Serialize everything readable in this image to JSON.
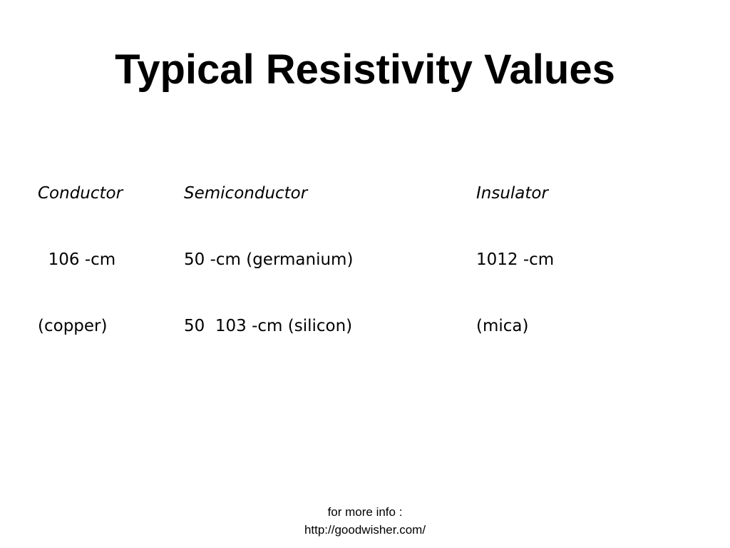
{
  "title": "Typical Resistivity Values",
  "columns": [
    {
      "heading": "Conductor",
      "lines": [
        "  106 -cm",
        "(copper)"
      ]
    },
    {
      "heading": "Semiconductor",
      "lines": [
        "50 -cm (germanium)",
        "50  103 -cm (silicon)"
      ]
    },
    {
      "heading": "Insulator",
      "lines": [
        "1012 -cm",
        "(mica)"
      ]
    }
  ],
  "footer": {
    "line1": "for more info :",
    "line2": "http://goodwisher.com/"
  }
}
